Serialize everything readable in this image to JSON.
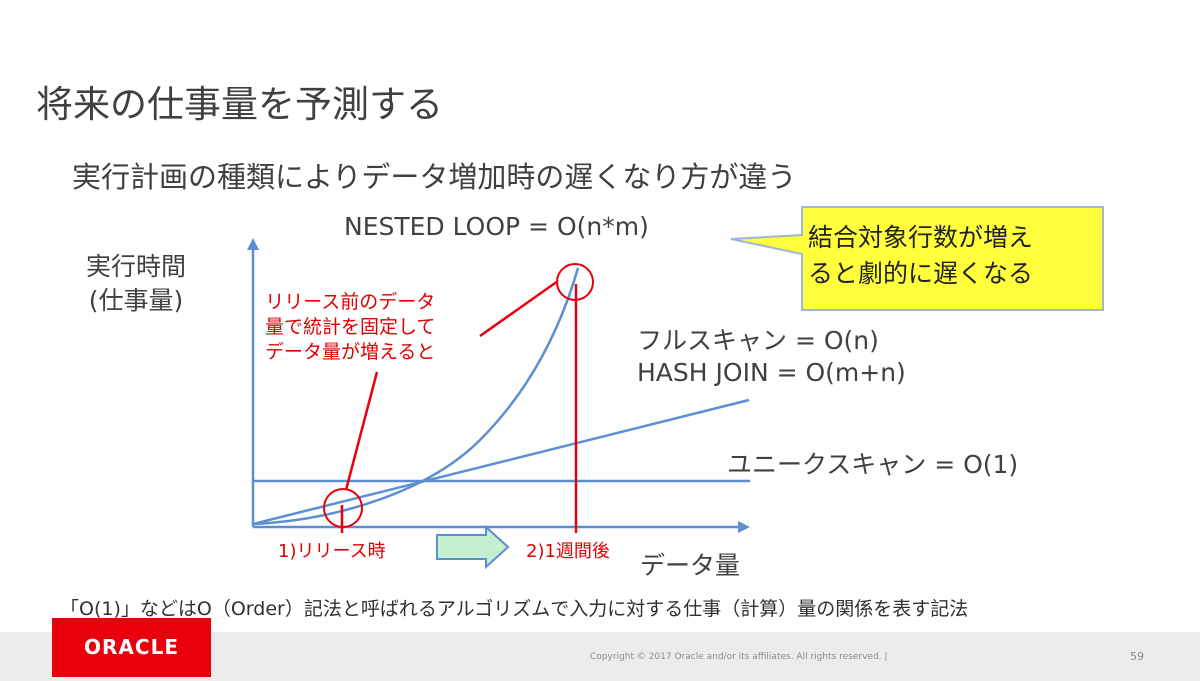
{
  "slide": {
    "title": "将来の仕事量を予測する",
    "subtitle": "実行計画の種類によりデータ増加時の遅くなり方が違う"
  },
  "axes": {
    "y_label_line1": "実行時間",
    "y_label_line2": "(仕事量)",
    "x_label": "データ量"
  },
  "curves": {
    "nested_loop": "NESTED LOOP = O(n*m)",
    "full_scan": "フルスキャン = O(n)",
    "hash_join": "HASH JOIN = O(m+n)",
    "unique_scan": "ユニークスキャン = O(1)"
  },
  "callout": {
    "line1": "結合対象行数が増え",
    "line2": "ると劇的に遅くなる"
  },
  "red_note": {
    "line1": "リリース前のデータ",
    "line2": "量で統計を固定して",
    "line3": "データ量が増えると"
  },
  "markers": {
    "release": "1)リリース時",
    "week_after": "2)1週間後"
  },
  "footnote": "「O(1)」などはO（Order）記法と呼ばれるアルゴリズムで入力に対する仕事（計算）量の関係を表す記法",
  "footer": {
    "logo_text": "ORACLE",
    "copyright": "Copyright © 2017 Oracle and/or its affiliates. All rights reserved.  |",
    "page_number": "59"
  },
  "colors": {
    "curve_blue": "#5b8fd1",
    "accent_red": "#e8000b",
    "callout_fill": "#ffff3b",
    "arrow_green": "#c6efcf"
  }
}
